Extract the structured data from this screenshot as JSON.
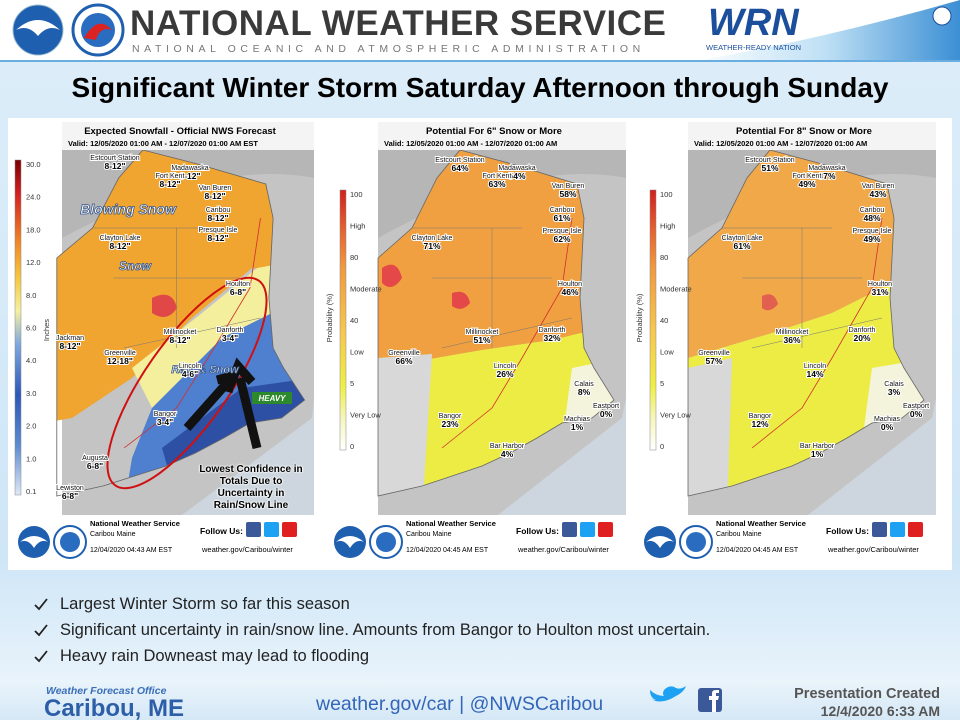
{
  "header": {
    "title": "NATIONAL WEATHER SERVICE",
    "subtitle": "NATIONAL OCEANIC AND ATMOSPHERIC ADMINISTRATION",
    "wrn_logo": "WRN",
    "wrn_tagline": "WEATHER-READY NATION"
  },
  "headline": "Significant Winter Storm Saturday Afternoon through Sunday",
  "panels": [
    {
      "title": "Expected Snowfall - Official NWS Forecast",
      "valid": "Valid: 12/05/2020 01:00 AM - 12/07/2020 01:00 AM EST",
      "legend": {
        "title": "Inches",
        "ticks": [
          "30.0",
          "24.0",
          "18.0",
          "12.0",
          "8.0",
          "6.0",
          "4.0",
          "3.0",
          "2.0",
          "1.0",
          "0.1"
        ]
      },
      "cities": [
        {
          "name": "Estcourt Station",
          "value": "8-12\""
        },
        {
          "name": "Madawaska",
          "value": "8-12\""
        },
        {
          "name": "Fort Kent",
          "value": "8-12\""
        },
        {
          "name": "Van Buren",
          "value": "8-12\""
        },
        {
          "name": "Caribou",
          "value": "8-12\""
        },
        {
          "name": "Presque Isle",
          "value": "8-12\""
        },
        {
          "name": "Clayton Lake",
          "value": "8-12\""
        },
        {
          "name": "Houlton",
          "value": "6-8\""
        },
        {
          "name": "Jackman",
          "value": "8-12\""
        },
        {
          "name": "Millinocket",
          "value": "8-12\""
        },
        {
          "name": "Danforth",
          "value": "3-4\""
        },
        {
          "name": "Greenville",
          "value": "12-18\""
        },
        {
          "name": "Lincoln",
          "value": "4-6\""
        },
        {
          "name": "Bangor",
          "value": "3-4\""
        },
        {
          "name": "Augusta",
          "value": "6-8\""
        },
        {
          "name": "Lewiston",
          "value": "6-8\""
        }
      ],
      "annotations": [
        "Blowing Snow",
        "Snow",
        "Rain & Snow",
        "HEAVY",
        "Lowest Confidence in Totals Due to Uncertainty in Rain/Snow Line"
      ],
      "footer": {
        "office": "National Weather Service",
        "location": "Caribou Maine",
        "issued": "12/04/2020 04:43 AM EST",
        "follow": "Follow Us:",
        "url": "weather.gov/Caribou/winter"
      }
    },
    {
      "title": "Potential For 6\" Snow or More",
      "valid": "Valid: 12/05/2020 01:00 AM - 12/07/2020 01:00 AM",
      "legend": {
        "title": "Probability (%)",
        "ticks": [
          "100",
          "High",
          "80",
          "Moderate",
          "40",
          "Low",
          "5",
          "Very Low",
          "0"
        ]
      },
      "cities": [
        {
          "name": "Estcourt Station",
          "value": "64%"
        },
        {
          "name": "Madawaska",
          "value": "54%"
        },
        {
          "name": "Fort Kent",
          "value": "63%"
        },
        {
          "name": "Van Buren",
          "value": "58%"
        },
        {
          "name": "Caribou",
          "value": "61%"
        },
        {
          "name": "Presque Isle",
          "value": "62%"
        },
        {
          "name": "Clayton Lake",
          "value": "71%"
        },
        {
          "name": "Houlton",
          "value": "46%"
        },
        {
          "name": "Millinocket",
          "value": "51%"
        },
        {
          "name": "Danforth",
          "value": "32%"
        },
        {
          "name": "Greenville",
          "value": "66%"
        },
        {
          "name": "Lincoln",
          "value": "26%"
        },
        {
          "name": "Calais",
          "value": "8%"
        },
        {
          "name": "Eastport",
          "value": "0%"
        },
        {
          "name": "Machias",
          "value": "1%"
        },
        {
          "name": "Bangor",
          "value": "23%"
        },
        {
          "name": "Bar Harbor",
          "value": "4%"
        }
      ],
      "footer": {
        "office": "National Weather Service",
        "location": "Caribou Maine",
        "issued": "12/04/2020 04:45 AM EST",
        "follow": "Follow Us:",
        "url": "weather.gov/Caribou/winter"
      }
    },
    {
      "title": "Potential For 8\" Snow or More",
      "valid": "Valid: 12/05/2020 01:00 AM - 12/07/2020 01:00 AM",
      "legend": {
        "title": "Probability (%)",
        "ticks": [
          "100",
          "High",
          "80",
          "Moderate",
          "40",
          "Low",
          "5",
          "Very Low",
          "0"
        ]
      },
      "cities": [
        {
          "name": "Estcourt Station",
          "value": "51%"
        },
        {
          "name": "Madawaska",
          "value": "37%"
        },
        {
          "name": "Fort Kent",
          "value": "49%"
        },
        {
          "name": "Van Buren",
          "value": "43%"
        },
        {
          "name": "Caribou",
          "value": "48%"
        },
        {
          "name": "Presque Isle",
          "value": "49%"
        },
        {
          "name": "Clayton Lake",
          "value": "61%"
        },
        {
          "name": "Houlton",
          "value": "31%"
        },
        {
          "name": "Millinocket",
          "value": "36%"
        },
        {
          "name": "Danforth",
          "value": "20%"
        },
        {
          "name": "Greenville",
          "value": "57%"
        },
        {
          "name": "Lincoln",
          "value": "14%"
        },
        {
          "name": "Calais",
          "value": "3%"
        },
        {
          "name": "Eastport",
          "value": "0%"
        },
        {
          "name": "Machias",
          "value": "0%"
        },
        {
          "name": "Bangor",
          "value": "12%"
        },
        {
          "name": "Bar Harbor",
          "value": "1%"
        }
      ],
      "footer": {
        "office": "National Weather Service",
        "location": "Caribou Maine",
        "issued": "12/04/2020 04:45 AM EST",
        "follow": "Follow Us:",
        "url": "weather.gov/Caribou/winter"
      }
    }
  ],
  "bullets": [
    "Largest Winter Storm so far this season",
    "Significant uncertainty in rain/snow line. Amounts from Bangor to Houlton most uncertain.",
    "Heavy rain Downeast may lead to flooding"
  ],
  "footer": {
    "office_label": "Weather Forecast Office",
    "office": "Caribou, ME",
    "contact": "weather.gov/car | @NWSCaribou",
    "created_label": "Presentation Created",
    "created": "12/4/2020 6:33 AM"
  }
}
